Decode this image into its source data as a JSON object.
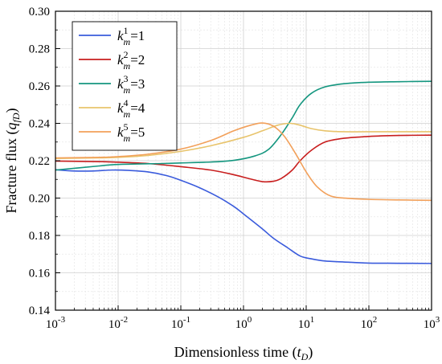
{
  "chart_data": {
    "type": "line",
    "xlabel": "Dimensionless time (t_D)",
    "xlabel_main": "Dimensionless time (",
    "xlabel_var": "t",
    "xlabel_sub": "D",
    "xlabel_close": ")",
    "ylabel": "Fracture flux (q_fD)",
    "ylabel_main": "Fracture flux (",
    "ylabel_var": "q",
    "ylabel_sub": "fD",
    "ylabel_close": ")",
    "x_scale": "log",
    "xlim": [
      0.001,
      1000
    ],
    "ylim": [
      0.14,
      0.3
    ],
    "grid": true,
    "legend_position": "top-left",
    "x_ticks": [
      {
        "value": 0.001,
        "base": "10",
        "exp": "-3"
      },
      {
        "value": 0.01,
        "base": "10",
        "exp": "-2"
      },
      {
        "value": 0.1,
        "base": "10",
        "exp": "-1"
      },
      {
        "value": 1,
        "base": "10",
        "exp": "0"
      },
      {
        "value": 10,
        "base": "10",
        "exp": "1"
      },
      {
        "value": 100,
        "base": "10",
        "exp": "2"
      },
      {
        "value": 1000,
        "base": "10",
        "exp": "3"
      }
    ],
    "y_ticks": [
      "0.14",
      "0.16",
      "0.18",
      "0.20",
      "0.22",
      "0.24",
      "0.26",
      "0.28",
      "0.30"
    ],
    "series": [
      {
        "name": "k_m^1=1",
        "sym": "k",
        "sub": "m",
        "sup": "1",
        "eq": "=1",
        "color": "#3a5bdc",
        "points": [
          [
            0.001,
            0.2152
          ],
          [
            0.002,
            0.2145
          ],
          [
            0.004,
            0.2145
          ],
          [
            0.008,
            0.215
          ],
          [
            0.015,
            0.2148
          ],
          [
            0.03,
            0.214
          ],
          [
            0.06,
            0.212
          ],
          [
            0.1,
            0.2095
          ],
          [
            0.2,
            0.2055
          ],
          [
            0.4,
            0.2005
          ],
          [
            0.7,
            0.1955
          ],
          [
            1,
            0.1915
          ],
          [
            2,
            0.1835
          ],
          [
            3,
            0.1785
          ],
          [
            5,
            0.1735
          ],
          [
            8,
            0.169
          ],
          [
            12,
            0.1675
          ],
          [
            20,
            0.1663
          ],
          [
            40,
            0.1658
          ],
          [
            100,
            0.1652
          ],
          [
            300,
            0.1651
          ],
          [
            1000,
            0.165
          ]
        ]
      },
      {
        "name": "k_m^2=2",
        "sym": "k",
        "sub": "m",
        "sup": "2",
        "eq": "=2",
        "color": "#c81e1e",
        "points": [
          [
            0.001,
            0.2198
          ],
          [
            0.005,
            0.2195
          ],
          [
            0.01,
            0.2192
          ],
          [
            0.03,
            0.2185
          ],
          [
            0.1,
            0.2168
          ],
          [
            0.3,
            0.215
          ],
          [
            0.7,
            0.2125
          ],
          [
            1.2,
            0.2105
          ],
          [
            2,
            0.2088
          ],
          [
            3,
            0.209
          ],
          [
            4,
            0.2105
          ],
          [
            6,
            0.215
          ],
          [
            8,
            0.22
          ],
          [
            12,
            0.2255
          ],
          [
            20,
            0.23
          ],
          [
            40,
            0.232
          ],
          [
            100,
            0.233
          ],
          [
            300,
            0.2335
          ],
          [
            1000,
            0.2337
          ]
        ]
      },
      {
        "name": "k_m^3=3",
        "sym": "k",
        "sub": "m",
        "sup": "3",
        "eq": "=3",
        "color": "#14967f",
        "points": [
          [
            0.001,
            0.215
          ],
          [
            0.005,
            0.2172
          ],
          [
            0.01,
            0.218
          ],
          [
            0.05,
            0.2185
          ],
          [
            0.1,
            0.2188
          ],
          [
            0.3,
            0.2193
          ],
          [
            0.7,
            0.2202
          ],
          [
            1.5,
            0.2225
          ],
          [
            2.5,
            0.226
          ],
          [
            4,
            0.234
          ],
          [
            6,
            0.243
          ],
          [
            8,
            0.25
          ],
          [
            12,
            0.256
          ],
          [
            20,
            0.2595
          ],
          [
            40,
            0.2612
          ],
          [
            100,
            0.262
          ],
          [
            300,
            0.2623
          ],
          [
            1000,
            0.2625
          ]
        ]
      },
      {
        "name": "k_m^4=4",
        "sym": "k",
        "sub": "m",
        "sup": "4",
        "eq": "=4",
        "color": "#e8c46c",
        "points": [
          [
            0.001,
            0.2212
          ],
          [
            0.005,
            0.2215
          ],
          [
            0.01,
            0.2218
          ],
          [
            0.03,
            0.2228
          ],
          [
            0.1,
            0.225
          ],
          [
            0.3,
            0.228
          ],
          [
            1,
            0.2325
          ],
          [
            2,
            0.236
          ],
          [
            3.5,
            0.239
          ],
          [
            5.5,
            0.24
          ],
          [
            8,
            0.239
          ],
          [
            12,
            0.2372
          ],
          [
            20,
            0.236
          ],
          [
            40,
            0.2355
          ],
          [
            100,
            0.2355
          ],
          [
            1000,
            0.2355
          ]
        ]
      },
      {
        "name": "k_m^5=5",
        "sym": "k",
        "sub": "m",
        "sup": "5",
        "eq": "=5",
        "color": "#f2a05a",
        "points": [
          [
            0.001,
            0.2215
          ],
          [
            0.005,
            0.2218
          ],
          [
            0.01,
            0.2222
          ],
          [
            0.03,
            0.2235
          ],
          [
            0.1,
            0.2262
          ],
          [
            0.3,
            0.2308
          ],
          [
            0.7,
            0.236
          ],
          [
            1.3,
            0.239
          ],
          [
            2,
            0.2402
          ],
          [
            3,
            0.2385
          ],
          [
            4.5,
            0.233
          ],
          [
            7,
            0.223
          ],
          [
            10,
            0.214
          ],
          [
            15,
            0.206
          ],
          [
            25,
            0.201
          ],
          [
            50,
            0.1998
          ],
          [
            100,
            0.1993
          ],
          [
            300,
            0.199
          ],
          [
            1000,
            0.1988
          ]
        ]
      }
    ]
  }
}
